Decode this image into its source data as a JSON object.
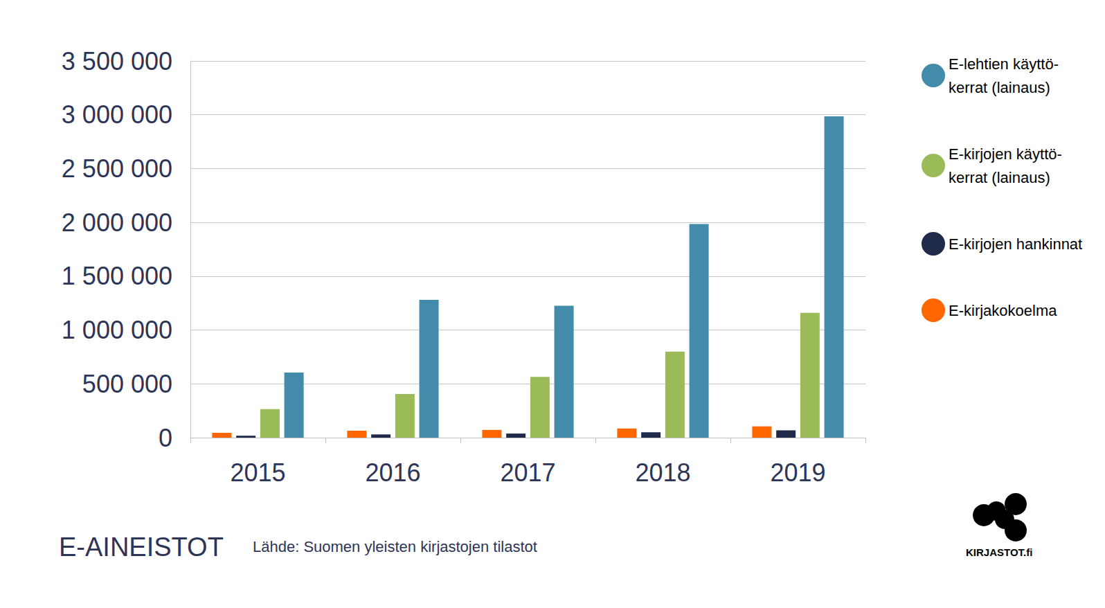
{
  "chart_data": {
    "type": "bar",
    "title": "E-AINEISTOT",
    "annotations": [
      "Lähde: Suomen yleisten kirjastojen tilastot",
      "KIRJASTOT.fi"
    ],
    "categories": [
      "2015",
      "2016",
      "2017",
      "2018",
      "2019"
    ],
    "series": [
      {
        "name": "E-kirjakokoelma",
        "color": "#ff6600",
        "values": [
          45000,
          65000,
          72000,
          85000,
          105000
        ]
      },
      {
        "name": "E-kirjojen hankinnat",
        "color": "#1f2a4a",
        "values": [
          18000,
          30000,
          38000,
          50000,
          68000
        ]
      },
      {
        "name": "E-kirjojen käyttö-\nkerrat (lainaus)",
        "color": "#9bbb59",
        "values": [
          265000,
          405000,
          565000,
          800000,
          1160000
        ]
      },
      {
        "name": "E-lehtien käyttö-\nkerrat (lainaus)",
        "color": "#428bab",
        "values": [
          605000,
          1280000,
          1225000,
          1985000,
          2985000
        ]
      }
    ],
    "ylim": [
      0,
      3500000
    ],
    "yticks": [
      {
        "value": 0,
        "label": "0"
      },
      {
        "value": 500000,
        "label": "500 000"
      },
      {
        "value": 1000000,
        "label": "1 000 000"
      },
      {
        "value": 1500000,
        "label": "1 500 000"
      },
      {
        "value": 2000000,
        "label": "2 000 000"
      },
      {
        "value": 2500000,
        "label": "2 500 000"
      },
      {
        "value": 3000000,
        "label": "3 000 000"
      },
      {
        "value": 3500000,
        "label": "3 500 000"
      }
    ],
    "grid": true,
    "legend": "right"
  }
}
